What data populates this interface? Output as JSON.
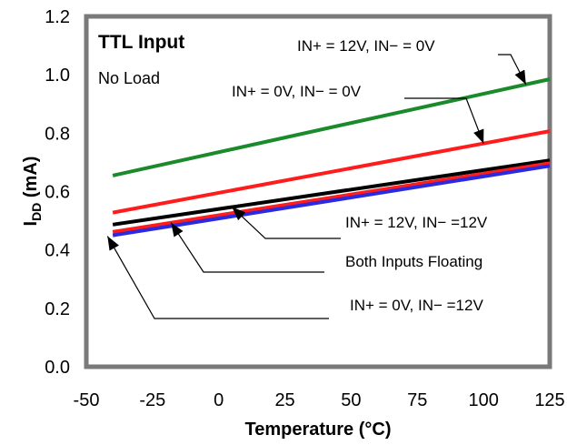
{
  "chart_data": {
    "type": "line",
    "title": "",
    "conditions": {
      "title": "TTL Input",
      "subtitle": "No Load"
    },
    "xlabel": "Temperature (°C)",
    "ylabel": {
      "main": "I",
      "sub": "DD",
      "unit": " (mA)"
    },
    "xlim": [
      -50,
      125
    ],
    "ylim": [
      0,
      1.2
    ],
    "xticks": [
      "-50",
      "-25",
      "0",
      "25",
      "50",
      "75",
      "100",
      "125"
    ],
    "yticks": [
      "0.0",
      "0.2",
      "0.4",
      "0.6",
      "0.8",
      "1.0",
      "1.2"
    ],
    "grid": false,
    "series": [
      {
        "name": "IN+ = 12V, IN− = 0V",
        "color": "#1a8a2a",
        "x": [
          -40,
          125
        ],
        "y": [
          0.655,
          0.985
        ]
      },
      {
        "name": "IN+ = 0V, IN− = 0V",
        "color": "#ff1c1c",
        "x": [
          -40,
          125
        ],
        "y": [
          0.528,
          0.807
        ]
      },
      {
        "name": "IN+ = 12V, IN− =12V",
        "color": "#000000",
        "x": [
          -40,
          125
        ],
        "y": [
          0.487,
          0.707
        ]
      },
      {
        "name": "Both Inputs Floating",
        "color": "#ff1c1c",
        "x": [
          -40,
          125
        ],
        "y": [
          0.462,
          0.697
        ]
      },
      {
        "name": "IN+ = 0V, IN− =12V",
        "color": "#2a2ae0",
        "x": [
          -40,
          125
        ],
        "y": [
          0.45,
          0.688
        ]
      }
    ]
  }
}
